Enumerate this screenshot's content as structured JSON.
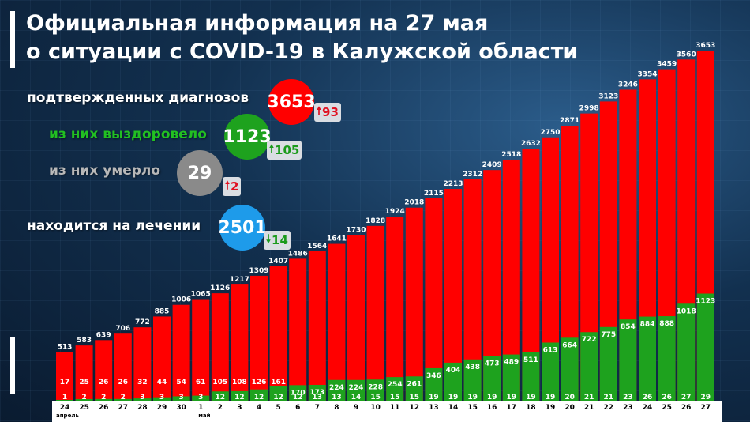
{
  "title": {
    "line1": "Официальная информация на 27 мая",
    "line2": "о ситуации с COVID-19 в Калужской области"
  },
  "colors": {
    "confirmed": "#ff0000",
    "recovered": "#1ea21e",
    "deaths": "#8a8a8a",
    "treatment": "#1e9bea",
    "up_arrow": "#e01020",
    "down_arrow": "#1a9a1a"
  },
  "legend": {
    "confirmed": {
      "label": "подтвержденных диагнозов",
      "value": "3653",
      "delta": "93",
      "direction": "up"
    },
    "recovered": {
      "label": "из них выздоровело",
      "value": "1123",
      "delta": "105",
      "direction": "up"
    },
    "deaths": {
      "label": "из них умерло",
      "value": "29",
      "delta": "2",
      "direction": "up"
    },
    "treatment": {
      "label": "находится на лечении",
      "value": "2501",
      "delta": "14",
      "direction": "down"
    }
  },
  "chart_data": {
    "type": "bar",
    "title": "",
    "xlabel": "",
    "ylabel": "",
    "ylim": [
      0,
      3653
    ],
    "categories": [
      "24",
      "25",
      "26",
      "27",
      "28",
      "29",
      "30",
      "1",
      "2",
      "3",
      "4",
      "5",
      "6",
      "7",
      "8",
      "9",
      "10",
      "11",
      "12",
      "13",
      "14",
      "15",
      "16",
      "17",
      "18",
      "19",
      "20",
      "21",
      "22",
      "23",
      "24",
      "25",
      "26",
      "27"
    ],
    "month_labels": [
      {
        "index": 0,
        "label": "апрель"
      },
      {
        "index": 7,
        "label": "май"
      }
    ],
    "series": [
      {
        "name": "подтвержденных диагнозов",
        "color": "#ff0000",
        "values": [
          513,
          583,
          639,
          706,
          772,
          885,
          1006,
          1065,
          1126,
          1217,
          1309,
          1407,
          1486,
          1564,
          1641,
          1730,
          1828,
          1924,
          2018,
          2115,
          2213,
          2312,
          2409,
          2518,
          2632,
          2750,
          2871,
          2998,
          3123,
          3246,
          3354,
          3459,
          3560,
          3653
        ]
      },
      {
        "name": "выздоровело",
        "color": "#1ea21e",
        "values": [
          17,
          25,
          26,
          26,
          32,
          44,
          54,
          61,
          105,
          108,
          126,
          161,
          170,
          173,
          224,
          224,
          228,
          254,
          261,
          346,
          404,
          438,
          473,
          489,
          511,
          613,
          664,
          722,
          775,
          854,
          884,
          888,
          1018,
          1123
        ]
      },
      {
        "name": "умерло",
        "color": "#1ea21e",
        "values": [
          1,
          2,
          2,
          2,
          3,
          3,
          3,
          3,
          12,
          12,
          12,
          12,
          12,
          13,
          13,
          14,
          15,
          15,
          15,
          19,
          19,
          19,
          19,
          19,
          19,
          19,
          20,
          21,
          21,
          23,
          26,
          26,
          27,
          29
        ]
      }
    ]
  }
}
